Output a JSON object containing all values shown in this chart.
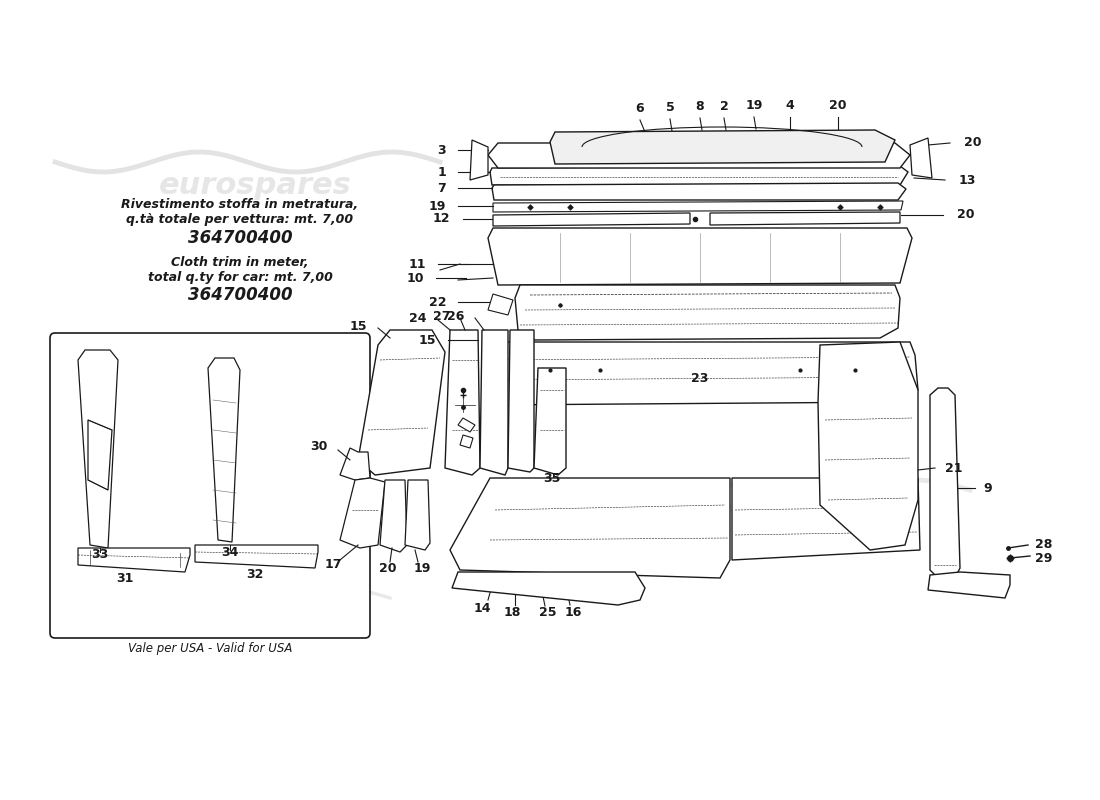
{
  "background_color": "#ffffff",
  "watermark_color": "#c8c8c8",
  "text_color": "#1a1a1a",
  "italian_text_line1": "Rivestimento stoffa in metratura,",
  "italian_text_line2": "q.tà totale per vettura: mt. 7,00",
  "italian_part_number": "364700400",
  "english_text_line1": "Cloth trim in meter,",
  "english_text_line2": "total q.ty for car: mt. 7,00",
  "english_part_number": "364700400",
  "usa_note": "Vale per USA - Valid for USA",
  "figsize": [
    11.0,
    8.0
  ],
  "dpi": 100
}
